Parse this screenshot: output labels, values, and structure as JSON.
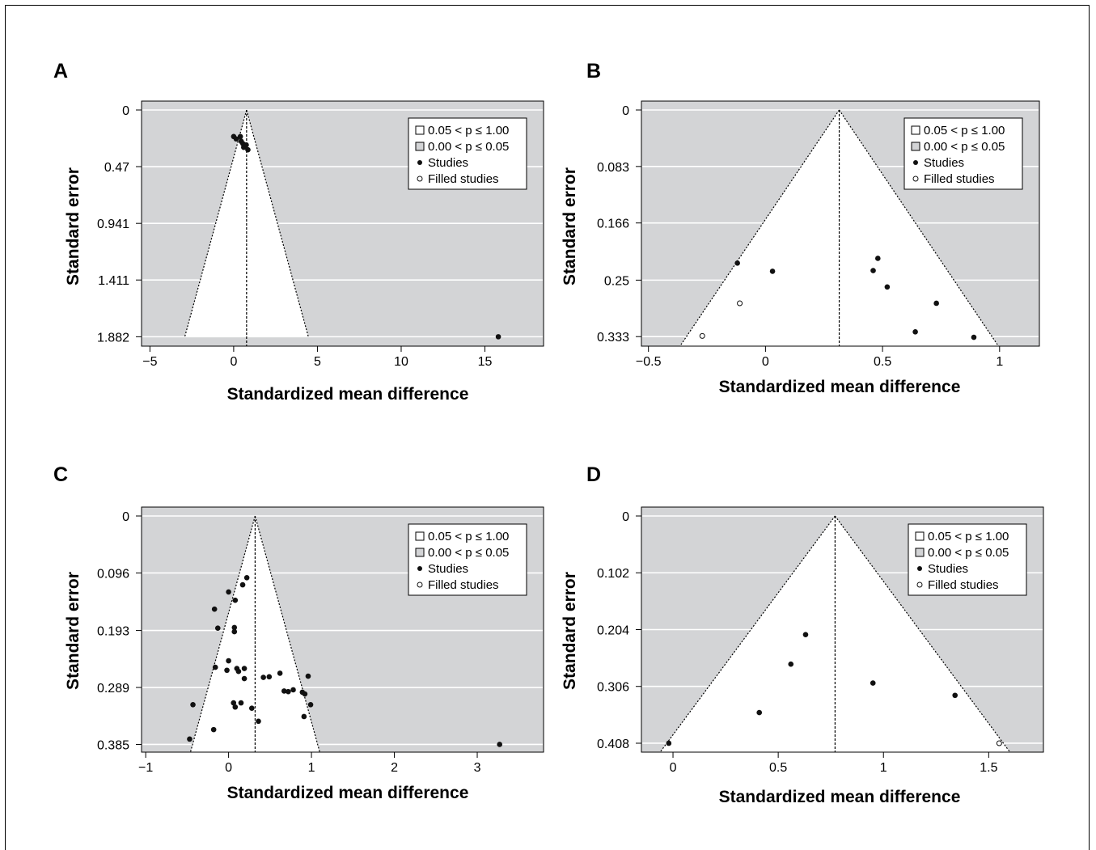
{
  "style": {
    "plot_bg": "#d3d4d6",
    "funnel_fill": "#ffffff",
    "grid_color": "#ffffff",
    "point_color": "#111111"
  },
  "legend_items": [
    {
      "kind": "box-white",
      "label": "0.05 < p ≤ 1.00"
    },
    {
      "kind": "box-grey",
      "label": "0.00 < p ≤ 0.05"
    },
    {
      "kind": "dot-filled",
      "label": "Studies"
    },
    {
      "kind": "dot-open",
      "label": "Filled studies"
    }
  ],
  "chart_data": [
    {
      "panel": "A",
      "type": "scatter",
      "xlabel": "Standardized mean difference",
      "ylabel": "Standard error",
      "xlim": [
        -5.5,
        18.5
      ],
      "ylim": [
        0,
        1.96
      ],
      "y_inverted": true,
      "xticks": [
        -5,
        0,
        5,
        10,
        15
      ],
      "xtick_labels": [
        "−5",
        "0",
        "5",
        "10",
        "15"
      ],
      "yticks": [
        0,
        0.47,
        0.941,
        1.411,
        1.882
      ],
      "ytick_labels": [
        "0",
        "0.47",
        "0.941",
        "1.411",
        "1.882"
      ],
      "funnel": {
        "center": 0.77,
        "se_max": 1.882,
        "width_factor": 1.96
      },
      "studies": [
        [
          0,
          0.22
        ],
        [
          0.15,
          0.24
        ],
        [
          0.4,
          0.22
        ],
        [
          0.45,
          0.26
        ],
        [
          0.55,
          0.28
        ],
        [
          0.6,
          0.31
        ],
        [
          0.75,
          0.29
        ],
        [
          0.85,
          0.33
        ],
        [
          15.8,
          1.882
        ]
      ],
      "filled_studies": []
    },
    {
      "panel": "B",
      "type": "scatter",
      "xlabel": "Standardized mean difference",
      "ylabel": "Standard error",
      "xlim": [
        -0.53,
        1.17
      ],
      "ylim": [
        0,
        0.347
      ],
      "y_inverted": true,
      "xticks": [
        -0.5,
        0,
        0.5,
        1
      ],
      "xtick_labels": [
        "−0.5",
        "0",
        "0.5",
        "1"
      ],
      "yticks": [
        0,
        0.083,
        0.166,
        0.25,
        0.333
      ],
      "ytick_labels": [
        "0",
        "0.083",
        "0.166",
        "0.25",
        "0.333"
      ],
      "funnel": {
        "center": 0.315,
        "se_max": 0.347,
        "width_factor": 1.96
      },
      "studies": [
        [
          -0.12,
          0.225
        ],
        [
          0.03,
          0.237
        ],
        [
          0.48,
          0.218
        ],
        [
          0.46,
          0.236
        ],
        [
          0.52,
          0.26
        ],
        [
          0.73,
          0.284
        ],
        [
          0.64,
          0.326
        ],
        [
          0.89,
          0.334
        ]
      ],
      "filled_studies": [
        [
          -0.11,
          0.284
        ],
        [
          -0.27,
          0.332
        ]
      ]
    },
    {
      "panel": "C",
      "type": "scatter",
      "xlabel": "Standardized mean difference",
      "ylabel": "Standard error",
      "xlim": [
        -1.05,
        3.8
      ],
      "ylim": [
        0,
        0.398
      ],
      "y_inverted": true,
      "xticks": [
        -1,
        0,
        1,
        2,
        3
      ],
      "xtick_labels": [
        "−1",
        "0",
        "1",
        "2",
        "3"
      ],
      "yticks": [
        0,
        0.096,
        0.193,
        0.289,
        0.385
      ],
      "ytick_labels": [
        "0",
        "0.096",
        "0.193",
        "0.289",
        "0.385"
      ],
      "funnel": {
        "center": 0.32,
        "se_max": 0.398,
        "width_factor": 1.96
      },
      "studies": [
        [
          0.22,
          0.104
        ],
        [
          0.17,
          0.116
        ],
        [
          0,
          0.128
        ],
        [
          0.08,
          0.142
        ],
        [
          -0.17,
          0.157
        ],
        [
          -0.13,
          0.189
        ],
        [
          0.07,
          0.188
        ],
        [
          0.07,
          0.195
        ],
        [
          -0.16,
          0.255
        ],
        [
          0.0,
          0.244
        ],
        [
          -0.02,
          0.26
        ],
        [
          0.1,
          0.257
        ],
        [
          0.12,
          0.262
        ],
        [
          0.19,
          0.257
        ],
        [
          0.19,
          0.274
        ],
        [
          0.42,
          0.272
        ],
        [
          0.49,
          0.271
        ],
        [
          0.62,
          0.265
        ],
        [
          0.96,
          0.27
        ],
        [
          0.67,
          0.295
        ],
        [
          0.72,
          0.296
        ],
        [
          0.78,
          0.293
        ],
        [
          0.89,
          0.297
        ],
        [
          0.92,
          0.3
        ],
        [
          0.06,
          0.315
        ],
        [
          0.08,
          0.322
        ],
        [
          0.15,
          0.315
        ],
        [
          0.28,
          0.324
        ],
        [
          0.99,
          0.318
        ],
        [
          -0.43,
          0.318
        ],
        [
          0.91,
          0.338
        ],
        [
          0.36,
          0.346
        ],
        [
          -0.18,
          0.36
        ],
        [
          -0.47,
          0.376
        ],
        [
          3.27,
          0.385
        ]
      ],
      "filled_studies": []
    },
    {
      "panel": "D",
      "type": "scatter",
      "xlabel": "Standardized mean difference",
      "ylabel": "Standard error",
      "xlim": [
        -0.15,
        1.76
      ],
      "ylim": [
        0,
        0.424
      ],
      "y_inverted": true,
      "xticks": [
        0,
        0.5,
        1,
        1.5
      ],
      "xtick_labels": [
        "0",
        "0.5",
        "1",
        "1.5"
      ],
      "yticks": [
        0,
        0.102,
        0.204,
        0.306,
        0.408
      ],
      "ytick_labels": [
        "0",
        "0.102",
        "0.204",
        "0.306",
        "0.408"
      ],
      "funnel": {
        "center": 0.77,
        "se_max": 0.424,
        "width_factor": 1.96
      },
      "studies": [
        [
          0.63,
          0.213
        ],
        [
          0.56,
          0.266
        ],
        [
          0.95,
          0.3
        ],
        [
          1.34,
          0.322
        ],
        [
          0.41,
          0.353
        ],
        [
          -0.02,
          0.408
        ]
      ],
      "filled_studies": [
        [
          1.55,
          0.408
        ]
      ]
    }
  ]
}
